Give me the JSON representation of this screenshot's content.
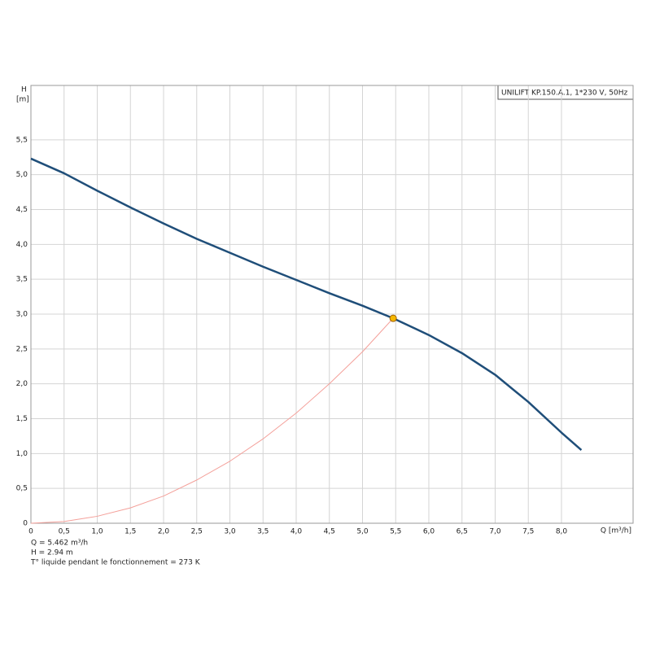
{
  "chart_data": {
    "type": "line",
    "ylabel": "H",
    "yunit": "[m]",
    "xlabel": "Q [m³/h]",
    "legend_text": "UNILIFT KP.150.A.1, 1*230 V, 50Hz",
    "xlim": [
      0,
      9.08
    ],
    "ylim": [
      0,
      6.28
    ],
    "grid": true,
    "xticks": [
      0,
      {
        "value": 0.5,
        "label": "0,5"
      },
      {
        "value": 1,
        "label": "1,0"
      },
      {
        "value": 1.5,
        "label": "1,5"
      },
      {
        "value": 2,
        "label": "2,0"
      },
      {
        "value": 2.5,
        "label": "2,5"
      },
      {
        "value": 3,
        "label": "3,0"
      },
      {
        "value": 3.5,
        "label": "3,5"
      },
      {
        "value": 4,
        "label": "4,0"
      },
      {
        "value": 4.5,
        "label": "4,5"
      },
      {
        "value": 5,
        "label": "5,0"
      },
      {
        "value": 5.5,
        "label": "5,5"
      },
      {
        "value": 6,
        "label": "6,0"
      },
      {
        "value": 6.5,
        "label": "6,5"
      },
      {
        "value": 7,
        "label": "7,0"
      },
      {
        "value": 7.5,
        "label": "7,5"
      },
      {
        "value": 8,
        "label": "8,0"
      }
    ],
    "yticks": [
      0,
      {
        "value": 0.5,
        "label": "0,5"
      },
      {
        "value": 1,
        "label": "1,0"
      },
      {
        "value": 1.5,
        "label": "1,5"
      },
      {
        "value": 2,
        "label": "2,0"
      },
      {
        "value": 2.5,
        "label": "2,5"
      },
      {
        "value": 3,
        "label": "3,0"
      },
      {
        "value": 3.5,
        "label": "3,5"
      },
      {
        "value": 4,
        "label": "4,0"
      },
      {
        "value": 4.5,
        "label": "4,5"
      },
      {
        "value": 5,
        "label": "5,0"
      },
      {
        "value": 5.5,
        "label": "5,5"
      }
    ],
    "series": [
      {
        "color": "#1f4e79",
        "x": [
          0,
          0.5,
          1,
          1.5,
          2,
          2.5,
          3,
          3.5,
          4,
          4.5,
          5,
          5.462,
          6,
          6.5,
          7,
          7.5,
          8,
          8.3
        ],
        "values": [
          5.23,
          5.02,
          4.77,
          4.53,
          4.3,
          4.08,
          3.88,
          3.68,
          3.49,
          3.3,
          3.12,
          2.94,
          2.7,
          2.44,
          2.13,
          1.74,
          1.3,
          1.05
        ]
      },
      {
        "color": "#f4a09a",
        "x": [
          0,
          0.5,
          1,
          1.5,
          2,
          2.5,
          3,
          3.5,
          4,
          4.5,
          5,
          5.462
        ],
        "values": [
          0,
          0.025,
          0.1,
          0.22,
          0.39,
          0.62,
          0.89,
          1.21,
          1.58,
          2.0,
          2.46,
          2.94
        ]
      }
    ],
    "point": {
      "x": 5.462,
      "y": 2.94,
      "color": "#f5b800"
    },
    "notes": [
      "Q = 5.462 m³/h",
      "H = 2.94 m",
      "T° liquide pendant le fonctionnement = 273 K"
    ]
  }
}
